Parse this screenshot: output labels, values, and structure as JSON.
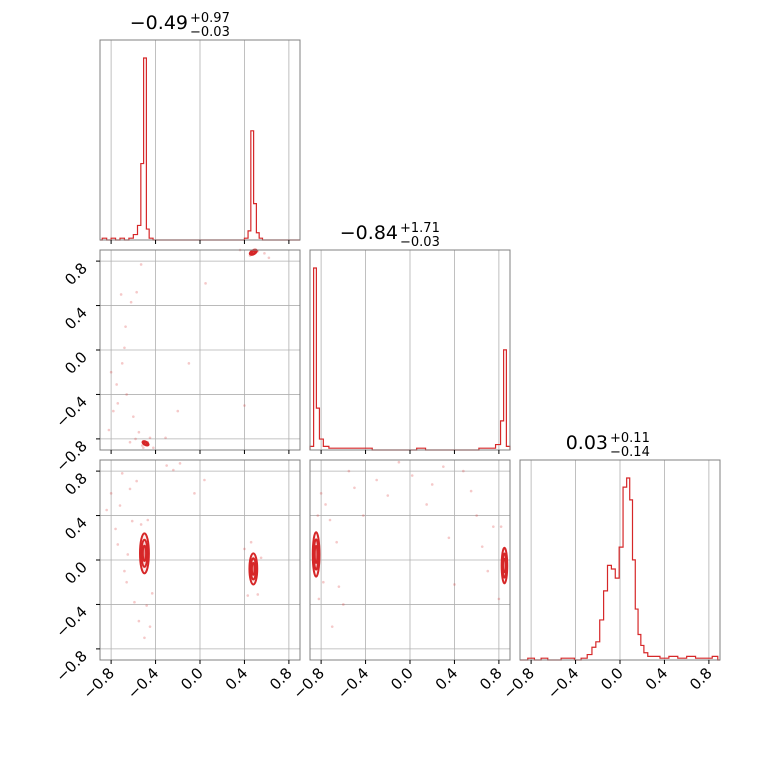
{
  "chart_data": {
    "type": "corner",
    "color": "#d62728",
    "panel_frame_color": "#808080",
    "grid_color": "#b0b0b0",
    "axis_range": [
      -0.9,
      0.9
    ],
    "ticks": [
      -0.8,
      -0.4,
      0.0,
      0.4,
      0.8
    ],
    "tick_labels": [
      "−0.8",
      "−0.4",
      "0.0",
      "0.4",
      "0.8"
    ],
    "grid": true,
    "params": [
      {
        "median": "−0.49",
        "plus": "+0.97",
        "minus": "−0.03"
      },
      {
        "median": "−0.84",
        "plus": "+1.71",
        "minus": "−0.03"
      },
      {
        "median": "0.03",
        "plus": "+0.11",
        "minus": "−0.14"
      }
    ],
    "histograms": [
      {
        "param": 0,
        "x": [
          -0.86,
          -0.82,
          -0.78,
          -0.74,
          -0.7,
          -0.66,
          -0.62,
          -0.58,
          -0.545,
          -0.52,
          -0.495,
          -0.47,
          -0.445,
          -0.4,
          0.38,
          0.42,
          0.445,
          0.47,
          0.495,
          0.52,
          0.545,
          0.58,
          0.62
        ],
        "density": [
          0.01,
          0.0,
          0.01,
          0.0,
          0.01,
          0.0,
          0.01,
          0.03,
          0.08,
          0.42,
          1.0,
          0.06,
          0.01,
          0.0,
          0.0,
          0.01,
          0.05,
          0.6,
          0.2,
          0.04,
          0.01,
          0.0,
          0.0
        ]
      },
      {
        "param": 1,
        "x": [
          -0.88,
          -0.855,
          -0.83,
          -0.8,
          -0.76,
          -0.7,
          -0.62,
          -0.54,
          -0.46,
          -0.38,
          -0.3,
          -0.22,
          -0.14,
          -0.06,
          0.02,
          0.1,
          0.18,
          0.26,
          0.34,
          0.42,
          0.5,
          0.58,
          0.66,
          0.74,
          0.8,
          0.83,
          0.855,
          0.88
        ],
        "density": [
          0.02,
          1.0,
          0.23,
          0.06,
          0.02,
          0.01,
          0.01,
          0.01,
          0.01,
          0.01,
          0.0,
          0.0,
          0.0,
          0.0,
          0.0,
          0.01,
          0.0,
          0.0,
          0.0,
          0.0,
          0.0,
          0.0,
          0.01,
          0.01,
          0.03,
          0.16,
          0.55,
          0.02
        ]
      },
      {
        "param": 2,
        "x": [
          -0.86,
          -0.8,
          -0.74,
          -0.68,
          -0.62,
          -0.56,
          -0.5,
          -0.44,
          -0.38,
          -0.32,
          -0.27,
          -0.235,
          -0.2,
          -0.165,
          -0.13,
          -0.095,
          -0.06,
          -0.025,
          0.01,
          0.045,
          0.075,
          0.1,
          0.125,
          0.15,
          0.175,
          0.2,
          0.23,
          0.27,
          0.32,
          0.4,
          0.48,
          0.56,
          0.64,
          0.72,
          0.8,
          0.86
        ],
        "density": [
          0.0,
          0.01,
          0.0,
          0.01,
          0.0,
          0.0,
          0.01,
          0.01,
          0.0,
          0.01,
          0.03,
          0.07,
          0.1,
          0.22,
          0.38,
          0.52,
          0.5,
          0.45,
          0.62,
          0.95,
          1.0,
          0.88,
          0.55,
          0.28,
          0.14,
          0.08,
          0.04,
          0.02,
          0.02,
          0.01,
          0.02,
          0.01,
          0.02,
          0.01,
          0.01,
          0.02
        ]
      }
    ],
    "pairs": [
      {
        "x_param": 0,
        "y_param": 1,
        "modes": [
          {
            "center": [
              -0.49,
              -0.84
            ],
            "rx": 0.03,
            "ry": 0.015,
            "tilt": 30
          },
          {
            "center": [
              0.48,
              0.88
            ],
            "rx": 0.035,
            "ry": 0.018,
            "tilt": -30
          }
        ],
        "scatter": [
          [
            -0.82,
            -0.72
          ],
          [
            -0.78,
            -0.55
          ],
          [
            -0.75,
            -0.31
          ],
          [
            -0.7,
            -0.12
          ],
          [
            -0.67,
            0.21
          ],
          [
            -0.62,
            0.43
          ],
          [
            -0.6,
            -0.6
          ],
          [
            -0.58,
            -0.8
          ],
          [
            -0.55,
            -0.74
          ],
          [
            -0.52,
            -0.86
          ],
          [
            -0.53,
            0.77
          ],
          [
            -0.63,
            -0.83
          ],
          [
            -0.66,
            -0.4
          ],
          [
            -0.71,
            0.5
          ],
          [
            -0.74,
            -0.48
          ],
          [
            -0.8,
            -0.2
          ],
          [
            -0.45,
            -0.79
          ],
          [
            -0.42,
            -0.88
          ],
          [
            -0.31,
            -0.79
          ],
          [
            -0.2,
            -0.55
          ],
          [
            -0.1,
            -0.12
          ],
          [
            0.05,
            0.6
          ],
          [
            0.4,
            -0.5
          ],
          [
            0.45,
            0.85
          ],
          [
            0.52,
            0.89
          ],
          [
            0.58,
            0.87
          ],
          [
            0.62,
            0.83
          ],
          [
            0.36,
            0.9
          ],
          [
            -0.57,
            0.52
          ],
          [
            -0.68,
            0.02
          ],
          [
            -0.51,
            -0.88
          ],
          [
            -0.47,
            -0.83
          ]
        ]
      },
      {
        "x_param": 0,
        "y_param": 2,
        "modes": [
          {
            "center": [
              -0.5,
              0.06
            ],
            "rx": 0.04,
            "ry": 0.18,
            "tilt": 0
          },
          {
            "center": [
              0.48,
              -0.08
            ],
            "rx": 0.035,
            "ry": 0.14,
            "tilt": 0
          }
        ],
        "scatter": [
          [
            -0.84,
            0.45
          ],
          [
            -0.8,
            0.6
          ],
          [
            -0.76,
            0.28
          ],
          [
            -0.72,
            0.49
          ],
          [
            -0.7,
            0.78
          ],
          [
            -0.66,
            -0.2
          ],
          [
            -0.63,
            0.64
          ],
          [
            -0.61,
            0.35
          ],
          [
            -0.59,
            -0.38
          ],
          [
            -0.57,
            0.71
          ],
          [
            -0.55,
            -0.55
          ],
          [
            -0.53,
            0.32
          ],
          [
            -0.48,
            -0.41
          ],
          [
            -0.45,
            -0.6
          ],
          [
            -0.43,
            -0.3
          ],
          [
            -0.47,
            0.36
          ],
          [
            -0.5,
            -0.7
          ],
          [
            -0.3,
            0.85
          ],
          [
            -0.24,
            0.81
          ],
          [
            -0.18,
            0.87
          ],
          [
            -0.05,
            0.6
          ],
          [
            0.04,
            0.72
          ],
          [
            0.4,
            0.1
          ],
          [
            0.43,
            -0.32
          ],
          [
            0.52,
            -0.31
          ],
          [
            0.46,
            0.16
          ],
          [
            0.55,
            0.02
          ],
          [
            -0.65,
            0.05
          ],
          [
            -0.68,
            -0.1
          ],
          [
            -0.74,
            0.14
          ]
        ]
      },
      {
        "x_param": 1,
        "y_param": 2,
        "modes": [
          {
            "center": [
              -0.845,
              0.05
            ],
            "rx": 0.03,
            "ry": 0.2,
            "tilt": 0
          },
          {
            "center": [
              0.85,
              -0.05
            ],
            "rx": 0.025,
            "ry": 0.16,
            "tilt": 0
          }
        ],
        "scatter": [
          [
            -0.8,
            0.6
          ],
          [
            -0.76,
            0.5
          ],
          [
            -0.72,
            0.36
          ],
          [
            -0.7,
            -0.6
          ],
          [
            -0.6,
            -0.4
          ],
          [
            -0.55,
            0.8
          ],
          [
            -0.5,
            0.65
          ],
          [
            -0.42,
            0.4
          ],
          [
            -0.3,
            0.72
          ],
          [
            -0.2,
            0.58
          ],
          [
            -0.1,
            0.88
          ],
          [
            0.02,
            0.76
          ],
          [
            0.15,
            0.5
          ],
          [
            0.2,
            0.68
          ],
          [
            0.3,
            0.84
          ],
          [
            0.35,
            0.2
          ],
          [
            0.48,
            0.8
          ],
          [
            0.55,
            0.62
          ],
          [
            0.6,
            0.4
          ],
          [
            0.65,
            0.12
          ],
          [
            0.7,
            -0.1
          ],
          [
            0.75,
            0.3
          ],
          [
            0.8,
            -0.35
          ],
          [
            0.82,
            0.3
          ],
          [
            -0.82,
            -0.35
          ],
          [
            -0.83,
            0.4
          ],
          [
            -0.78,
            -0.2
          ],
          [
            -0.66,
            0.16
          ],
          [
            -0.64,
            -0.24
          ],
          [
            0.4,
            -0.22
          ]
        ]
      }
    ]
  }
}
